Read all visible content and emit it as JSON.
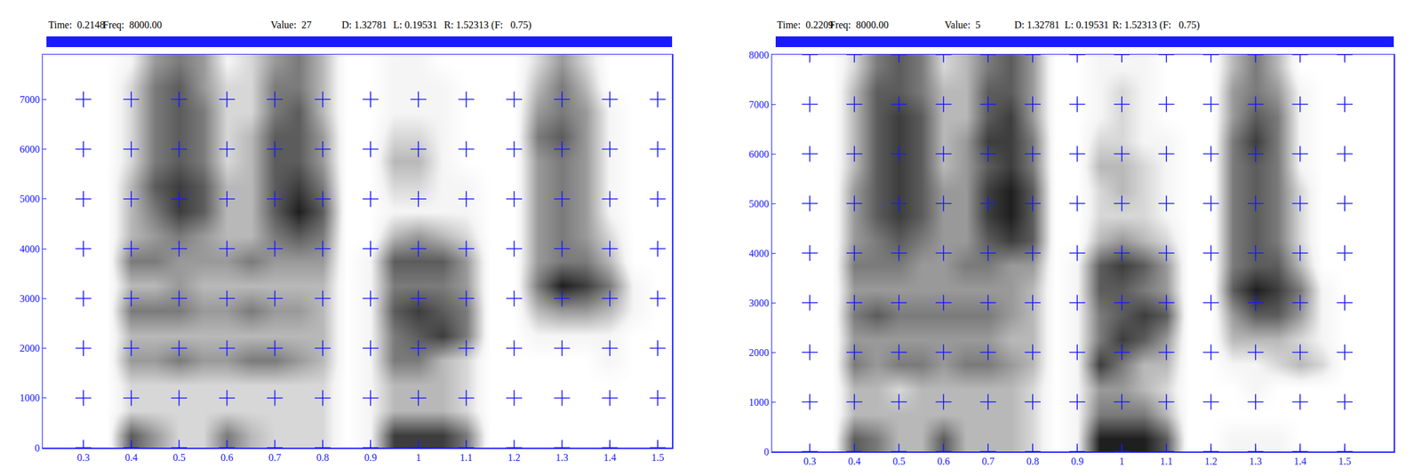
{
  "chart_data": [
    {
      "type": "heatmap",
      "header": [
        "Time:  0.2148",
        "Freq:  8000.00",
        "Value:  27",
        "D: 1.32781",
        "L: 0.19531",
        "R: 1.52313 (F:   0.75)"
      ],
      "x": [
        0.25,
        0.3,
        0.35,
        0.4,
        0.45,
        0.5,
        0.55,
        0.6,
        0.65,
        0.7,
        0.75,
        0.8,
        0.85,
        0.9,
        0.95,
        1.0,
        1.05,
        1.1,
        1.15,
        1.2,
        1.25,
        1.3,
        1.35,
        1.4,
        1.45,
        1.5
      ],
      "y": [
        250,
        750,
        1250,
        1750,
        2250,
        2750,
        3250,
        3750,
        4250,
        4750,
        5250,
        5750,
        6250,
        6750,
        7250,
        7750
      ],
      "z": [
        [
          0,
          0,
          0,
          6,
          4,
          2,
          2,
          5,
          3,
          2,
          2,
          2,
          0,
          1,
          7,
          7,
          7,
          5,
          0,
          0,
          0,
          0,
          0,
          0,
          0,
          0
        ],
        [
          0,
          0,
          0,
          2,
          2,
          2,
          2,
          2,
          2,
          2,
          2,
          2,
          0,
          1,
          3,
          3,
          3,
          2,
          0,
          0,
          0,
          0,
          0,
          0,
          0,
          0
        ],
        [
          0,
          0,
          0,
          2,
          2,
          2,
          2,
          2,
          2,
          2,
          2,
          2,
          0,
          1,
          3,
          3,
          3,
          2,
          0,
          0,
          0,
          0,
          0,
          0,
          0,
          0
        ],
        [
          0,
          0,
          0,
          4,
          4,
          5,
          4,
          4,
          5,
          5,
          4,
          3,
          0,
          1,
          5,
          5,
          3,
          2,
          0,
          0,
          0,
          0,
          0,
          1,
          0,
          0
        ],
        [
          0,
          0,
          0,
          3,
          3,
          3,
          3,
          3,
          3,
          3,
          3,
          3,
          0,
          1,
          5,
          6,
          7,
          5,
          0,
          0,
          1,
          1,
          1,
          1,
          0,
          0
        ],
        [
          0,
          0,
          0,
          5,
          5,
          5,
          4,
          4,
          5,
          4,
          4,
          3,
          0,
          1,
          6,
          7,
          6,
          5,
          0,
          0,
          3,
          4,
          4,
          3,
          1,
          0
        ],
        [
          0,
          0,
          0,
          3,
          3,
          4,
          3,
          3,
          3,
          3,
          3,
          3,
          0,
          1,
          5,
          5,
          5,
          4,
          0,
          0,
          5,
          8,
          7,
          5,
          1,
          0
        ],
        [
          0,
          0,
          0,
          5,
          5,
          4,
          4,
          4,
          5,
          4,
          4,
          4,
          0,
          1,
          6,
          6,
          6,
          4,
          0,
          0,
          4,
          5,
          5,
          3,
          0,
          0
        ],
        [
          0,
          0,
          0,
          3,
          4,
          5,
          4,
          3,
          3,
          5,
          6,
          5,
          0,
          0,
          3,
          4,
          3,
          2,
          0,
          0,
          4,
          5,
          4,
          2,
          0,
          0
        ],
        [
          0,
          0,
          0,
          3,
          5,
          7,
          6,
          3,
          3,
          6,
          8,
          6,
          0,
          0,
          1,
          1,
          1,
          1,
          0,
          0,
          4,
          5,
          4,
          1,
          0,
          0
        ],
        [
          0,
          0,
          0,
          3,
          6,
          7,
          6,
          3,
          3,
          6,
          7,
          5,
          0,
          0,
          2,
          2,
          1,
          1,
          0,
          0,
          4,
          5,
          4,
          1,
          0,
          0
        ],
        [
          0,
          0,
          0,
          2,
          5,
          6,
          5,
          2,
          3,
          6,
          6,
          4,
          0,
          0,
          3,
          3,
          1,
          0,
          0,
          0,
          4,
          5,
          4,
          1,
          0,
          0
        ],
        [
          0,
          0,
          0,
          2,
          5,
          6,
          5,
          2,
          3,
          6,
          6,
          4,
          0,
          0,
          2,
          2,
          1,
          0,
          0,
          0,
          5,
          6,
          4,
          1,
          0,
          0
        ],
        [
          0,
          0,
          0,
          2,
          5,
          6,
          5,
          2,
          2,
          5,
          6,
          3,
          0,
          0,
          1,
          1,
          1,
          0,
          0,
          0,
          4,
          5,
          4,
          1,
          0,
          0
        ],
        [
          0,
          0,
          0,
          2,
          5,
          6,
          4,
          2,
          2,
          5,
          5,
          3,
          0,
          0,
          1,
          1,
          1,
          0,
          0,
          0,
          3,
          5,
          3,
          0,
          0,
          0
        ],
        [
          0,
          0,
          0,
          1,
          4,
          5,
          4,
          1,
          2,
          4,
          5,
          3,
          0,
          0,
          1,
          1,
          0,
          0,
          0,
          0,
          2,
          4,
          2,
          0,
          0,
          0
        ]
      ],
      "zlim": [
        0,
        9
      ],
      "xlim": [
        0.215,
        1.53
      ],
      "ylim": [
        0,
        7900
      ],
      "xticks": [
        0.3,
        0.4,
        0.5,
        0.6,
        0.7,
        0.8,
        0.9,
        1,
        1.1,
        1.2,
        1.3,
        1.4,
        1.5
      ],
      "yticks": [
        0,
        1000,
        2000,
        3000,
        4000,
        5000,
        6000,
        7000
      ],
      "grid": true,
      "marker": "cross",
      "color": "#1a1aff"
    },
    {
      "type": "heatmap",
      "header": [
        "Time:  0.2209",
        "Freq:  8000.00",
        "Value:  5",
        "D: 1.32781",
        "L: 0.19531",
        "R: 1.52313 (F:   0.75)"
      ],
      "x": [
        0.25,
        0.3,
        0.35,
        0.4,
        0.45,
        0.5,
        0.55,
        0.6,
        0.65,
        0.7,
        0.75,
        0.8,
        0.85,
        0.9,
        0.95,
        1.0,
        1.05,
        1.1,
        1.15,
        1.2,
        1.25,
        1.3,
        1.35,
        1.4,
        1.45,
        1.5
      ],
      "y": [
        250,
        750,
        1250,
        1750,
        2250,
        2750,
        3250,
        3750,
        4250,
        4750,
        5250,
        5750,
        6250,
        6750,
        7250,
        7750
      ],
      "z": [
        [
          0,
          0,
          0,
          6,
          5,
          3,
          3,
          6,
          3,
          3,
          3,
          2,
          0,
          1,
          8,
          8,
          8,
          6,
          0,
          0,
          1,
          1,
          1,
          0,
          0,
          0
        ],
        [
          0,
          0,
          0,
          3,
          3,
          3,
          3,
          3,
          3,
          3,
          3,
          2,
          0,
          1,
          5,
          5,
          5,
          3,
          0,
          0,
          0,
          0,
          0,
          0,
          0,
          0
        ],
        [
          0,
          0,
          0,
          3,
          3,
          2,
          3,
          3,
          3,
          3,
          3,
          2,
          0,
          1,
          4,
          4,
          3,
          2,
          0,
          0,
          0,
          1,
          0,
          0,
          0,
          0
        ],
        [
          0,
          0,
          0,
          5,
          4,
          5,
          5,
          4,
          5,
          5,
          4,
          3,
          0,
          1,
          7,
          5,
          3,
          3,
          0,
          0,
          1,
          1,
          2,
          3,
          2,
          0
        ],
        [
          0,
          0,
          0,
          4,
          4,
          4,
          4,
          4,
          4,
          4,
          3,
          3,
          0,
          1,
          5,
          7,
          6,
          4,
          0,
          0,
          3,
          3,
          3,
          2,
          1,
          0
        ],
        [
          0,
          0,
          0,
          5,
          6,
          5,
          5,
          5,
          5,
          5,
          4,
          3,
          0,
          1,
          5,
          6,
          7,
          6,
          0,
          0,
          4,
          6,
          6,
          4,
          1,
          0
        ],
        [
          0,
          0,
          0,
          4,
          4,
          4,
          4,
          4,
          4,
          4,
          4,
          3,
          0,
          1,
          6,
          6,
          5,
          4,
          0,
          0,
          6,
          8,
          7,
          5,
          1,
          0
        ],
        [
          0,
          0,
          0,
          5,
          5,
          5,
          4,
          4,
          5,
          5,
          4,
          4,
          0,
          1,
          6,
          7,
          6,
          4,
          0,
          0,
          5,
          6,
          6,
          3,
          0,
          0
        ],
        [
          0,
          0,
          0,
          4,
          5,
          6,
          5,
          4,
          4,
          6,
          7,
          6,
          0,
          0,
          3,
          4,
          3,
          2,
          0,
          0,
          5,
          6,
          5,
          2,
          0,
          0
        ],
        [
          0,
          0,
          0,
          4,
          6,
          7,
          6,
          4,
          4,
          7,
          8,
          6,
          0,
          0,
          2,
          2,
          2,
          1,
          0,
          0,
          5,
          6,
          5,
          2,
          0,
          0
        ],
        [
          0,
          0,
          0,
          4,
          6,
          7,
          6,
          4,
          4,
          7,
          8,
          6,
          0,
          0,
          2,
          3,
          2,
          1,
          0,
          0,
          5,
          6,
          5,
          2,
          0,
          0
        ],
        [
          0,
          0,
          0,
          3,
          6,
          7,
          6,
          3,
          4,
          6,
          7,
          5,
          0,
          0,
          3,
          3,
          2,
          1,
          0,
          0,
          5,
          6,
          5,
          1,
          0,
          0
        ],
        [
          0,
          0,
          0,
          3,
          6,
          7,
          6,
          3,
          4,
          7,
          7,
          5,
          0,
          0,
          2,
          2,
          1,
          1,
          0,
          0,
          5,
          7,
          5,
          1,
          0,
          0
        ],
        [
          0,
          0,
          0,
          3,
          6,
          7,
          6,
          3,
          3,
          6,
          7,
          4,
          0,
          0,
          1,
          2,
          1,
          0,
          0,
          0,
          4,
          6,
          5,
          1,
          0,
          0
        ],
        [
          0,
          0,
          0,
          3,
          6,
          6,
          5,
          3,
          3,
          6,
          6,
          4,
          0,
          0,
          1,
          2,
          1,
          0,
          0,
          0,
          4,
          5,
          4,
          1,
          0,
          0
        ],
        [
          0,
          0,
          0,
          2,
          5,
          6,
          5,
          2,
          3,
          5,
          6,
          4,
          0,
          0,
          1,
          1,
          1,
          0,
          0,
          0,
          3,
          5,
          3,
          0,
          0,
          0
        ]
      ],
      "zlim": [
        0,
        9
      ],
      "xlim": [
        0.215,
        1.61
      ],
      "ylim": [
        0,
        8000
      ],
      "xticks": [
        0.3,
        0.4,
        0.5,
        0.6,
        0.7,
        0.8,
        0.9,
        1,
        1.1,
        1.2,
        1.3,
        1.4,
        1.5
      ],
      "yticks": [
        0,
        1000,
        2000,
        3000,
        4000,
        5000,
        6000,
        7000,
        8000
      ],
      "grid": true,
      "marker": "cross",
      "color": "#1a1aff"
    }
  ]
}
